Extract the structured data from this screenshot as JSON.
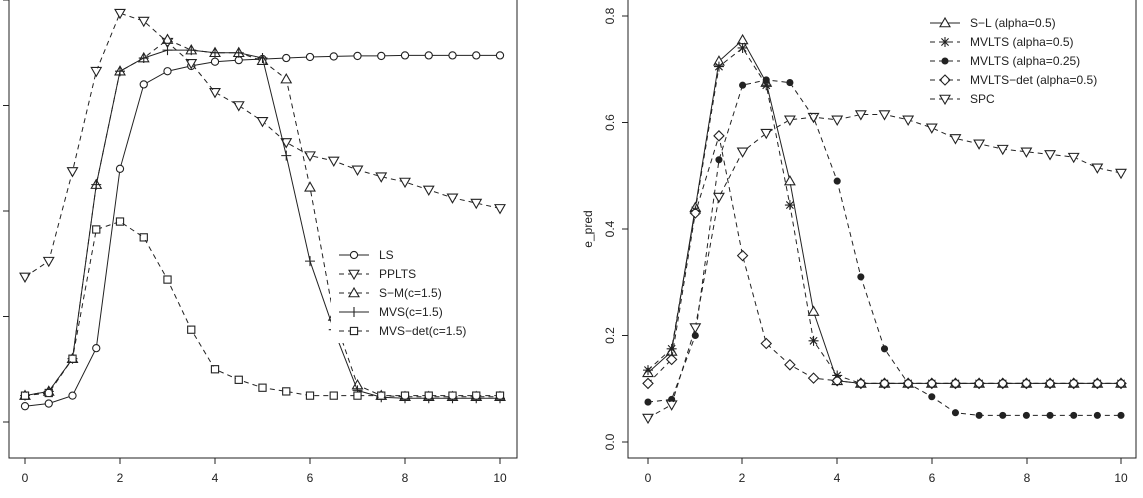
{
  "chart_data": [
    {
      "type": "line",
      "xlabel": "",
      "ylabel": "",
      "xlim": [
        0,
        10
      ],
      "ylim": [
        0.0,
        0.8
      ],
      "x_ticks": [
        "0",
        "2",
        "4",
        "6",
        "8",
        "10"
      ],
      "y_ticks": [],
      "legend_position": "center-right",
      "x": [
        0,
        0.5,
        1,
        1.5,
        2,
        2.5,
        3,
        3.5,
        4,
        4.5,
        5,
        5.5,
        6,
        6.5,
        7,
        7.5,
        8,
        8.5,
        9,
        9.5,
        10
      ],
      "series": [
        {
          "name": "LS",
          "marker": "circle",
          "dash": "none",
          "values": [
            0.03,
            0.035,
            0.05,
            0.14,
            0.48,
            0.64,
            0.665,
            0.675,
            0.683,
            0.686,
            0.688,
            0.69,
            0.692,
            0.693,
            0.694,
            0.694,
            0.695,
            0.695,
            0.695,
            0.695,
            0.695
          ]
        },
        {
          "name": "PPLTS",
          "marker": "tri-down",
          "dash": "dash",
          "values": [
            0.275,
            0.305,
            0.475,
            0.665,
            0.775,
            0.76,
            0.72,
            0.68,
            0.625,
            0.6,
            0.57,
            0.53,
            0.505,
            0.495,
            0.478,
            0.465,
            0.455,
            0.44,
            0.425,
            0.415,
            0.405
          ]
        },
        {
          "name": "S−M(c=1.5)",
          "marker": "tri-up",
          "dash": "dash",
          "values": [
            0.05,
            0.058,
            0.12,
            0.45,
            0.665,
            0.69,
            0.725,
            0.705,
            0.7,
            0.7,
            0.685,
            0.65,
            0.445,
            0.2,
            0.07,
            0.05,
            0.048,
            0.048,
            0.048,
            0.048,
            0.048
          ]
        },
        {
          "name": "MVS(c=1.5)",
          "marker": "plus",
          "dash": "none",
          "values": [
            0.05,
            0.058,
            0.12,
            0.45,
            0.665,
            0.69,
            0.705,
            0.705,
            0.7,
            0.7,
            0.69,
            0.505,
            0.305,
            0.175,
            0.06,
            0.047,
            0.045,
            0.045,
            0.045,
            0.045,
            0.045
          ]
        },
        {
          "name": "MVS−det(c=1.5)",
          "marker": "square",
          "dash": "dash",
          "values": [
            0.05,
            0.055,
            0.12,
            0.365,
            0.38,
            0.35,
            0.27,
            0.175,
            0.1,
            0.08,
            0.065,
            0.058,
            0.05,
            0.05,
            0.05,
            0.05,
            0.05,
            0.05,
            0.05,
            0.05,
            0.05
          ]
        }
      ]
    },
    {
      "type": "line",
      "xlabel": "",
      "ylabel": "e_pred",
      "xlim": [
        0,
        10
      ],
      "ylim": [
        0.0,
        0.8
      ],
      "x_ticks": [
        "0",
        "2",
        "4",
        "6",
        "8",
        "10"
      ],
      "y_ticks": [
        "0.0",
        "0.2",
        "0.4",
        "0.6",
        "0.8"
      ],
      "legend_position": "top-right",
      "x": [
        0,
        0.5,
        1,
        1.5,
        2,
        2.5,
        3,
        3.5,
        4,
        4.5,
        5,
        5.5,
        6,
        6.5,
        7,
        7.5,
        8,
        8.5,
        9,
        9.5,
        10
      ],
      "series": [
        {
          "name": "S−L (alpha=0.5)",
          "marker": "tri-up",
          "dash": "none",
          "values": [
            0.13,
            0.17,
            0.44,
            0.715,
            0.755,
            0.675,
            0.49,
            0.245,
            0.115,
            0.11,
            0.11,
            0.11,
            0.11,
            0.11,
            0.11,
            0.11,
            0.11,
            0.11,
            0.11,
            0.11,
            0.11
          ]
        },
        {
          "name": "MVLTS (alpha=0.5)",
          "marker": "star",
          "dash": "dash",
          "values": [
            0.135,
            0.175,
            0.435,
            0.705,
            0.74,
            0.67,
            0.445,
            0.19,
            0.125,
            0.11,
            0.11,
            0.11,
            0.11,
            0.11,
            0.11,
            0.11,
            0.11,
            0.11,
            0.11,
            0.11,
            0.11
          ]
        },
        {
          "name": "MVLTS (alpha=0.25)",
          "marker": "dot",
          "dash": "dash",
          "values": [
            0.075,
            0.08,
            0.2,
            0.53,
            0.67,
            0.68,
            0.675,
            0.61,
            0.49,
            0.31,
            0.175,
            0.11,
            0.085,
            0.055,
            0.05,
            0.05,
            0.05,
            0.05,
            0.05,
            0.05,
            0.05
          ]
        },
        {
          "name": "MVLTS−det (alpha=0.5)",
          "marker": "diamond",
          "dash": "dash",
          "values": [
            0.11,
            0.155,
            0.43,
            0.575,
            0.35,
            0.185,
            0.145,
            0.12,
            0.115,
            0.11,
            0.11,
            0.11,
            0.11,
            0.11,
            0.11,
            0.11,
            0.11,
            0.11,
            0.11,
            0.11,
            0.11
          ]
        },
        {
          "name": "SPC",
          "marker": "tri-down",
          "dash": "dash",
          "values": [
            0.045,
            0.07,
            0.215,
            0.46,
            0.545,
            0.58,
            0.605,
            0.61,
            0.605,
            0.615,
            0.615,
            0.605,
            0.59,
            0.57,
            0.56,
            0.55,
            0.545,
            0.54,
            0.535,
            0.515,
            0.505
          ]
        }
      ]
    }
  ]
}
